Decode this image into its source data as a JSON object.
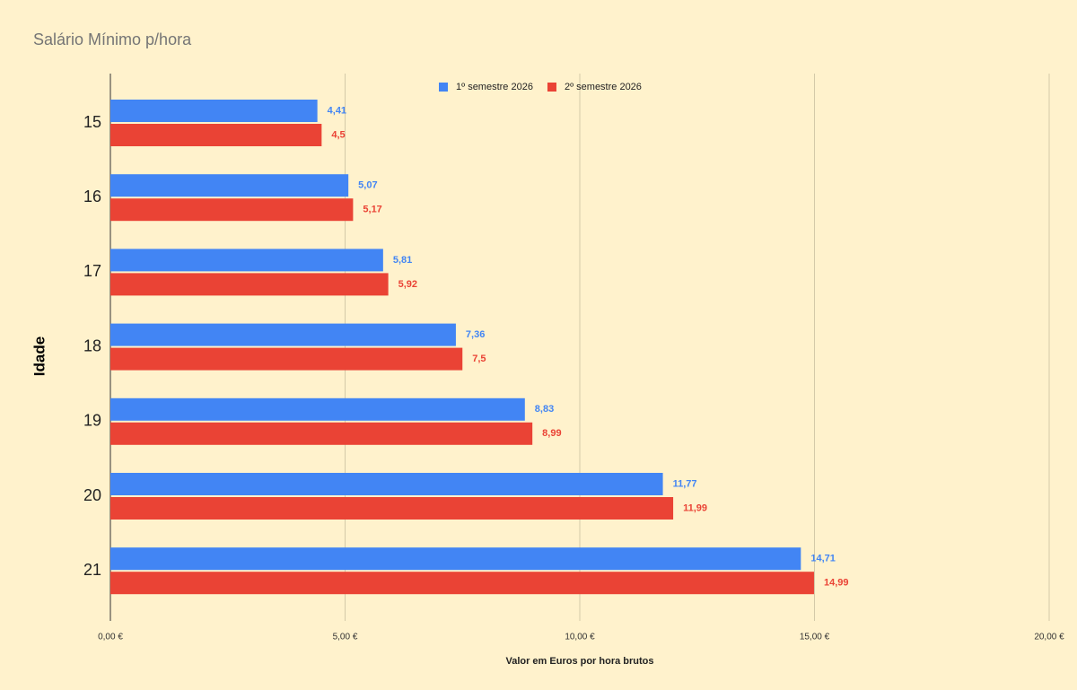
{
  "chart_data": {
    "type": "bar",
    "orientation": "horizontal",
    "title": "Salário Mínimo p/hora",
    "y_label": "Idade",
    "x_label": "Valor em Euros por hora brutos",
    "categories": [
      "15",
      "16",
      "17",
      "18",
      "19",
      "20",
      "21"
    ],
    "series": [
      {
        "name": "1º semestre 2026",
        "color": "#4285f4",
        "values": [
          4.41,
          5.07,
          5.81,
          7.36,
          8.83,
          11.77,
          14.71
        ],
        "value_labels": [
          "4,41",
          "5,07",
          "5,81",
          "7,36",
          "8,83",
          "11,77",
          "14,71"
        ]
      },
      {
        "name": "2º semestre 2026",
        "color": "#ea4335",
        "values": [
          4.5,
          5.17,
          5.92,
          7.5,
          8.99,
          11.99,
          14.99
        ],
        "value_labels": [
          "4,5",
          "5,17",
          "5,92",
          "7,5",
          "8,99",
          "11,99",
          "14,99"
        ]
      }
    ],
    "xlim": [
      0,
      20
    ],
    "xticks": [
      {
        "value": 0,
        "label": "0,00 €"
      },
      {
        "value": 5,
        "label": "5,00 €"
      },
      {
        "value": 10,
        "label": "10,00 €"
      },
      {
        "value": 15,
        "label": "15,00 €"
      },
      {
        "value": 20,
        "label": "20,00 €"
      }
    ],
    "grid": true,
    "legend": "top"
  }
}
